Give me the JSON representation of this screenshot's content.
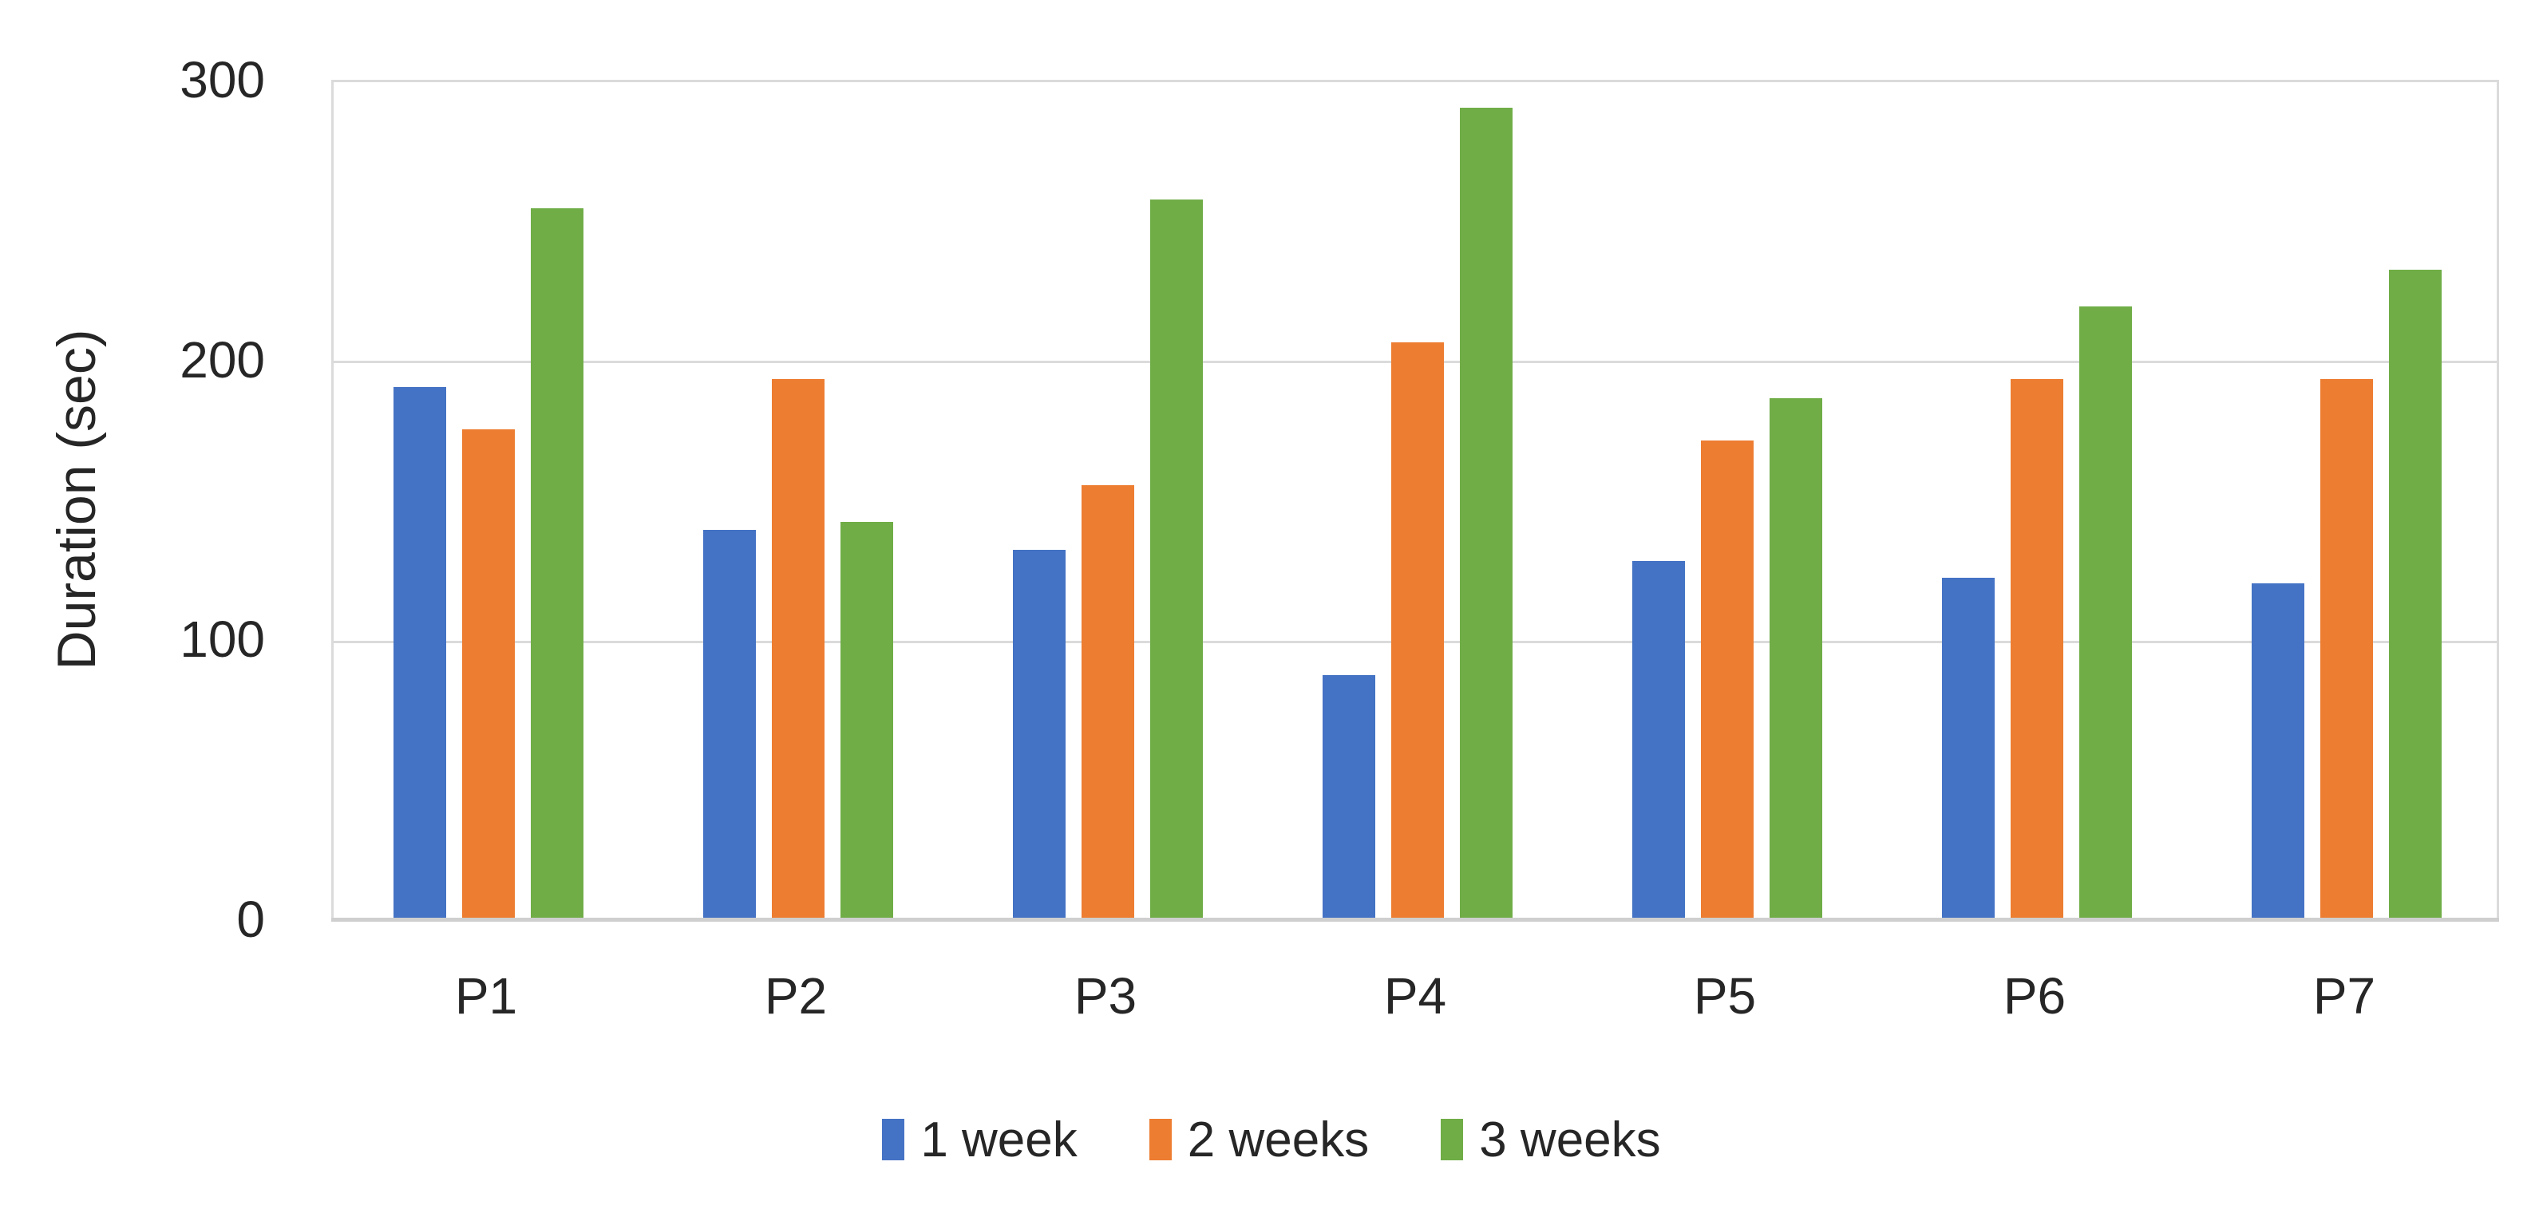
{
  "chart_data": {
    "type": "bar",
    "title": "",
    "categories": [
      "P1",
      "P2",
      "P3",
      "P4",
      "P5",
      "P6",
      "P7"
    ],
    "series": [
      {
        "name": "1 week",
        "color": "#4472C4",
        "values": [
          191,
          140,
          133,
          88,
          129,
          123,
          121
        ]
      },
      {
        "name": "2 weeks",
        "color": "#ED7D31",
        "values": [
          176,
          194,
          156,
          207,
          172,
          194,
          194
        ]
      },
      {
        "name": "3 weeks",
        "color": "#70AD47",
        "values": [
          255,
          143,
          258,
          291,
          187,
          220,
          233
        ]
      }
    ],
    "xlabel": "",
    "ylabel": "Duration (sec)",
    "ylim": [
      0,
      300
    ],
    "yticks": [
      0,
      100,
      200,
      300
    ],
    "grid": true,
    "legend_position": "bottom-center"
  },
  "styles": {
    "background": "#FFFFFF",
    "grid_color": "#DBDBDB",
    "axis_color": "#CFCFCF",
    "text_color": "#262626"
  }
}
